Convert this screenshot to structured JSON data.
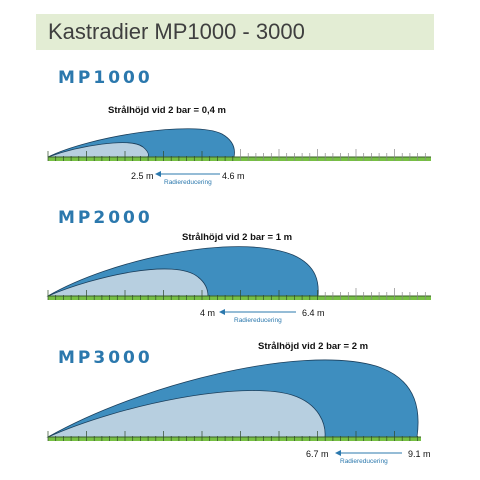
{
  "title": "Kastradier MP1000 - 3000",
  "colors": {
    "outer": "#3e8ebf",
    "inner": "#b7cfe0",
    "ground": "#77c044",
    "arrow": "#2b78ad",
    "title_bg": "#e3edd4"
  },
  "panels": [
    {
      "model": "MP1000",
      "height_note": "Strålhöjd vid 2 bar = 0,4 m",
      "inner_label": "2.5 m",
      "outer_label": "4.6 m",
      "reduction_label": "Radiereducering",
      "inner_radius_m": 2.5,
      "outer_radius_m": 4.6,
      "jet_height_m": 0.4
    },
    {
      "model": "MP2000",
      "height_note": "Strålhöjd vid 2 bar = 1 m",
      "inner_label": "4 m",
      "outer_label": "6.4 m",
      "reduction_label": "Radiereducering",
      "inner_radius_m": 4,
      "outer_radius_m": 6.4,
      "jet_height_m": 1
    },
    {
      "model": "MP3000",
      "height_note": "Strålhöjd vid 2 bar = 2 m",
      "inner_label": "6.7 m",
      "outer_label": "9.1 m",
      "reduction_label": "Radiereducering",
      "inner_radius_m": 6.7,
      "outer_radius_m": 9.1,
      "jet_height_m": 2
    }
  ]
}
